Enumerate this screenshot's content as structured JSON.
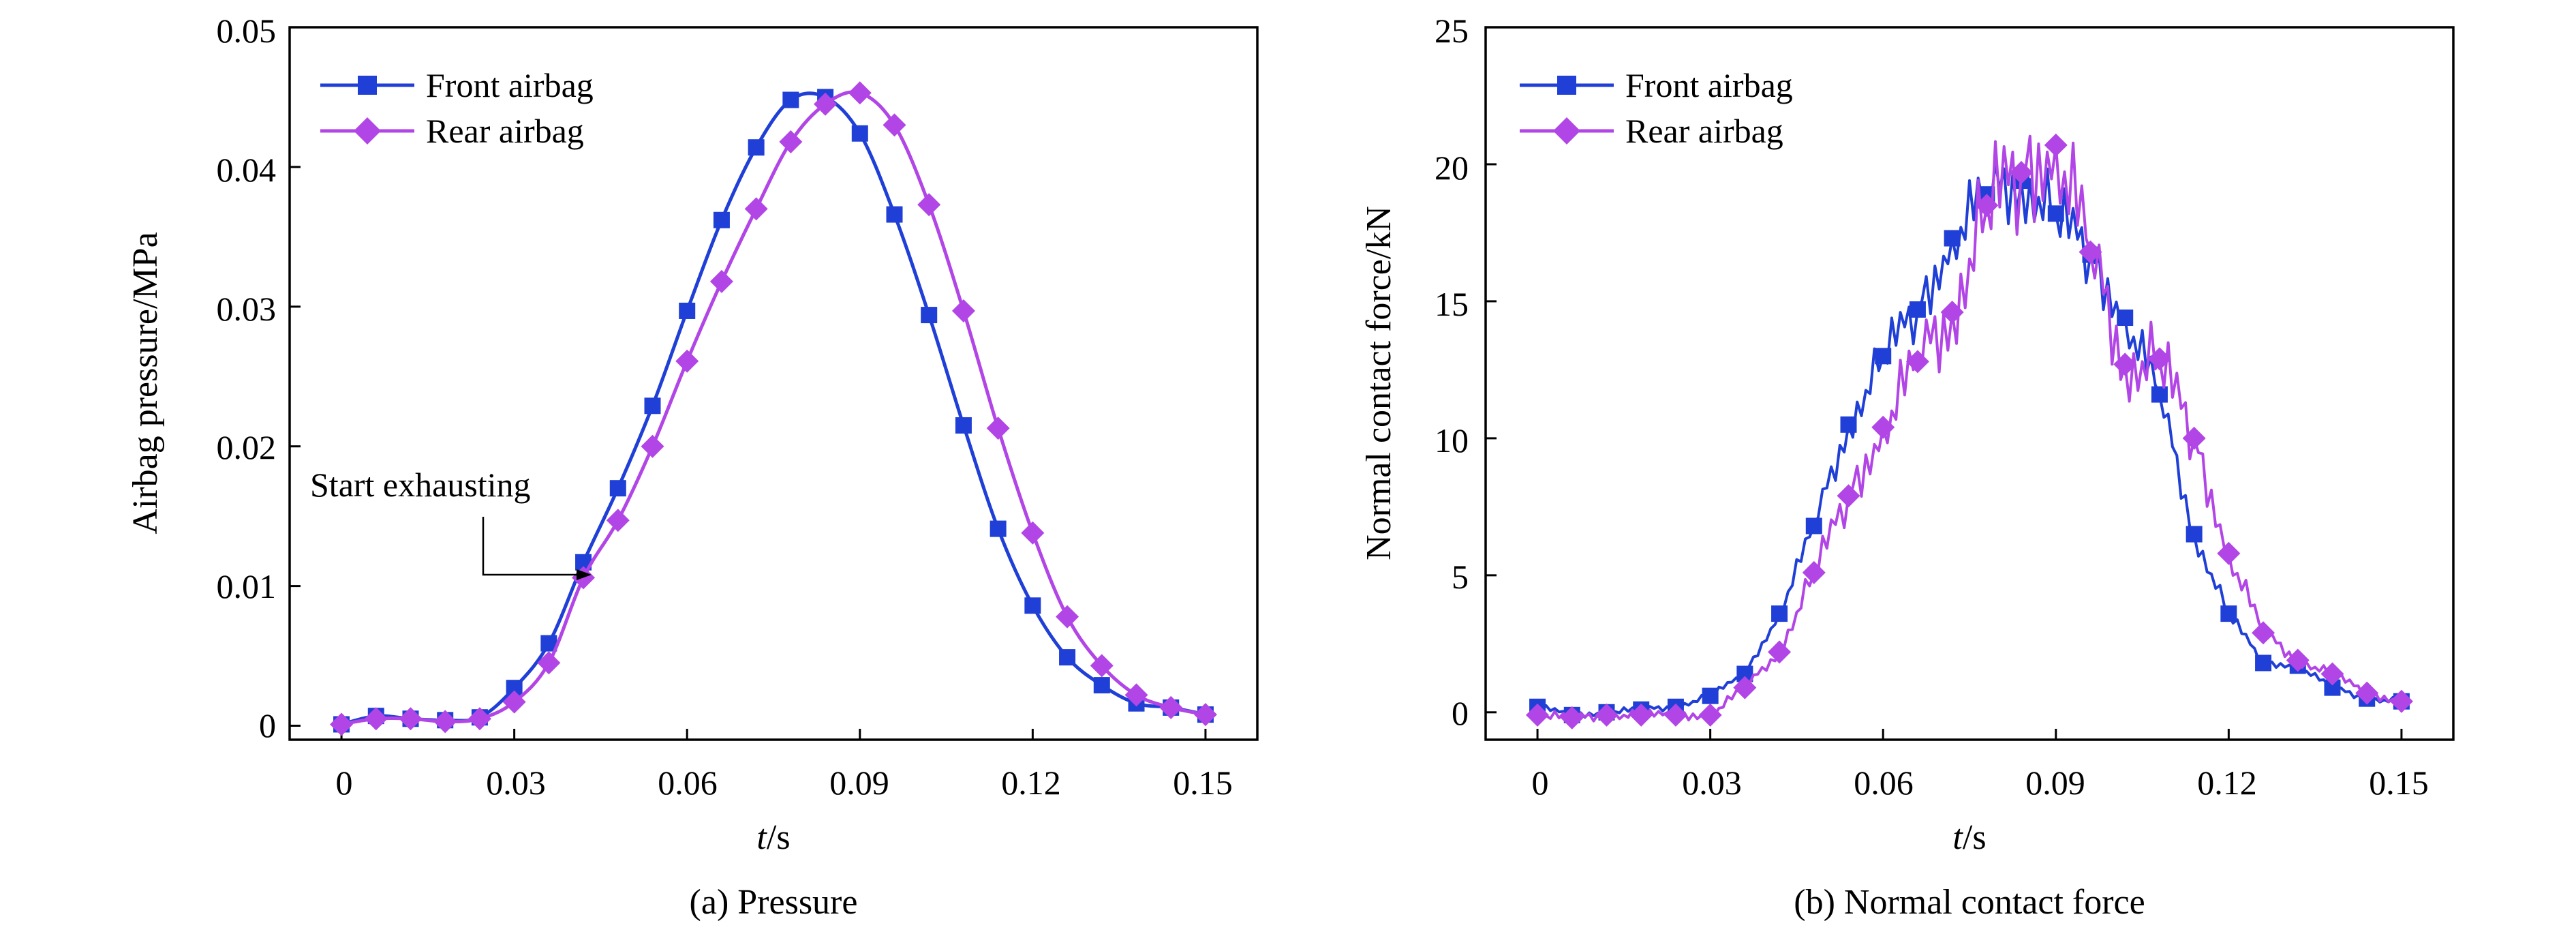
{
  "colors": {
    "front": "#1f3fd6",
    "rear": "#b245e6",
    "axis": "#000000"
  },
  "charts": [
    {
      "id": "a",
      "caption": "(a) Pressure",
      "xlabel_italic": "t",
      "xlabel_unit": "/s",
      "ylabel": "Airbag pressure/MPa",
      "annotation": "Start exhausting",
      "xticks": [
        "0",
        "0.03",
        "0.06",
        "0.09",
        "0.12",
        "0.15"
      ],
      "yticks": [
        "0",
        "0.01",
        "0.02",
        "0.03",
        "0.04",
        "0.05"
      ],
      "legend": [
        "Front airbag",
        "Rear airbag"
      ]
    },
    {
      "id": "b",
      "caption": "(b) Normal contact force",
      "xlabel_italic": "t",
      "xlabel_unit": "/s",
      "ylabel": "Normal contact force/kN",
      "xticks": [
        "0",
        "0.03",
        "0.06",
        "0.09",
        "0.12",
        "0.15"
      ],
      "yticks": [
        "0",
        "5",
        "10",
        "15",
        "20",
        "25"
      ],
      "legend": [
        "Front airbag",
        "Rear airbag"
      ]
    }
  ],
  "chart_data": [
    {
      "type": "line",
      "title": "(a) Pressure",
      "xlabel": "t/s",
      "ylabel": "Airbag pressure/MPa",
      "xlim": [
        -0.009,
        0.159
      ],
      "ylim": [
        -0.001,
        0.05
      ],
      "xticks": [
        0,
        0.03,
        0.06,
        0.09,
        0.12,
        0.15
      ],
      "yticks": [
        0,
        0.01,
        0.02,
        0.03,
        0.04,
        0.05
      ],
      "legend": "top-left",
      "annotation": {
        "text": "Start exhausting",
        "x": 0.041,
        "y": 0.011
      },
      "series": [
        {
          "name": "Front airbag",
          "marker": "square",
          "x": [
            0,
            0.006,
            0.012,
            0.018,
            0.024,
            0.03,
            0.036,
            0.042,
            0.048,
            0.054,
            0.06,
            0.066,
            0.072,
            0.078,
            0.084,
            0.09,
            0.096,
            0.102,
            0.108,
            0.114,
            0.12,
            0.126,
            0.132,
            0.138,
            0.144,
            0.15
          ],
          "y": [
            0.0001,
            0.0007,
            0.0005,
            0.0004,
            0.0006,
            0.0027,
            0.0059,
            0.0117,
            0.017,
            0.0229,
            0.0297,
            0.0362,
            0.0414,
            0.0448,
            0.045,
            0.0424,
            0.0366,
            0.0294,
            0.0215,
            0.0141,
            0.0086,
            0.0049,
            0.0029,
            0.0016,
            0.0013,
            0.0008
          ]
        },
        {
          "name": "Rear airbag",
          "marker": "diamond",
          "x": [
            0,
            0.006,
            0.012,
            0.018,
            0.024,
            0.03,
            0.036,
            0.042,
            0.048,
            0.054,
            0.06,
            0.066,
            0.072,
            0.078,
            0.084,
            0.09,
            0.096,
            0.102,
            0.108,
            0.114,
            0.12,
            0.126,
            0.132,
            0.138,
            0.144,
            0.15
          ],
          "y": [
            0.0001,
            0.0005,
            0.0005,
            0.0003,
            0.0005,
            0.0017,
            0.0045,
            0.0106,
            0.0147,
            0.02,
            0.0261,
            0.0318,
            0.037,
            0.0418,
            0.0445,
            0.0453,
            0.043,
            0.0373,
            0.0297,
            0.0213,
            0.0138,
            0.0078,
            0.0043,
            0.0022,
            0.0013,
            0.0008
          ]
        }
      ]
    },
    {
      "type": "line",
      "title": "(b) Normal contact force",
      "xlabel": "t/s",
      "ylabel": "Normal contact force/kN",
      "xlim": [
        -0.009,
        0.159
      ],
      "ylim": [
        -1,
        25
      ],
      "xticks": [
        0,
        0.03,
        0.06,
        0.09,
        0.12,
        0.15
      ],
      "yticks": [
        0,
        5,
        10,
        15,
        20,
        25
      ],
      "legend": "top-left",
      "series": [
        {
          "name": "Front airbag",
          "marker": "square",
          "x": [
            0,
            0.006,
            0.012,
            0.018,
            0.024,
            0.03,
            0.036,
            0.042,
            0.048,
            0.054,
            0.06,
            0.066,
            0.072,
            0.078,
            0.084,
            0.09,
            0.096,
            0.102,
            0.108,
            0.114,
            0.12,
            0.126,
            0.132,
            0.138,
            0.144,
            0.15
          ],
          "y": [
            0.2,
            -0.1,
            0.0,
            0.1,
            0.2,
            0.6,
            1.4,
            3.6,
            6.8,
            10.5,
            13.0,
            14.7,
            17.3,
            18.9,
            19.4,
            18.2,
            16.7,
            14.4,
            11.6,
            6.5,
            3.6,
            1.8,
            1.7,
            0.9,
            0.5,
            0.4
          ]
        },
        {
          "name": "Rear airbag",
          "marker": "diamond",
          "x": [
            0,
            0.006,
            0.012,
            0.018,
            0.024,
            0.03,
            0.036,
            0.042,
            0.048,
            0.054,
            0.06,
            0.066,
            0.072,
            0.078,
            0.084,
            0.09,
            0.096,
            0.102,
            0.108,
            0.114,
            0.12,
            0.126,
            0.132,
            0.138,
            0.144,
            0.15
          ],
          "y": [
            -0.1,
            -0.2,
            -0.1,
            -0.1,
            -0.1,
            -0.1,
            0.9,
            2.2,
            5.1,
            7.9,
            10.4,
            12.8,
            14.6,
            18.5,
            19.7,
            20.7,
            16.8,
            12.7,
            12.9,
            10.0,
            5.8,
            2.9,
            1.9,
            1.4,
            0.7,
            0.4
          ]
        }
      ]
    }
  ]
}
